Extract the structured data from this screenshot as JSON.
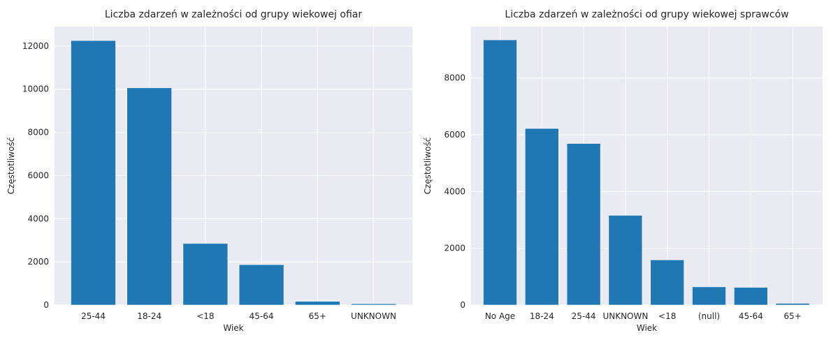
{
  "chart_data": [
    {
      "type": "bar",
      "title": "Liczba zdarzeń w zależności od grupy wiekowej ofiar",
      "xlabel": "Wiek",
      "ylabel": "Częstotliwość",
      "categories": [
        "25-44",
        "18-24",
        "<18",
        "45-64",
        "65+",
        "UNKNOWN"
      ],
      "values": [
        12250,
        10060,
        2850,
        1870,
        170,
        60
      ],
      "ylim": [
        0,
        12900
      ],
      "yticks": [
        0,
        2000,
        4000,
        6000,
        8000,
        10000,
        12000
      ],
      "grid": true,
      "bar_color": "#1f77b4"
    },
    {
      "type": "bar",
      "title": "Liczba zdarzeń w zależności od grupy wiekowej sprawców",
      "xlabel": "Wiek",
      "ylabel": "Częstotliwość",
      "categories": [
        "No Age",
        "18-24",
        "25-44",
        "UNKNOWN",
        "<18",
        "(null)",
        "45-64",
        "65+"
      ],
      "values": [
        9340,
        6220,
        5690,
        3160,
        1590,
        640,
        620,
        60
      ],
      "ylim": [
        0,
        9810
      ],
      "yticks": [
        0,
        2000,
        4000,
        6000,
        8000
      ],
      "grid": true,
      "bar_color": "#1f77b4"
    }
  ],
  "style": {
    "plot_background": "#eaeaf2",
    "grid_color": "#ffffff",
    "text_color": "#262626"
  }
}
